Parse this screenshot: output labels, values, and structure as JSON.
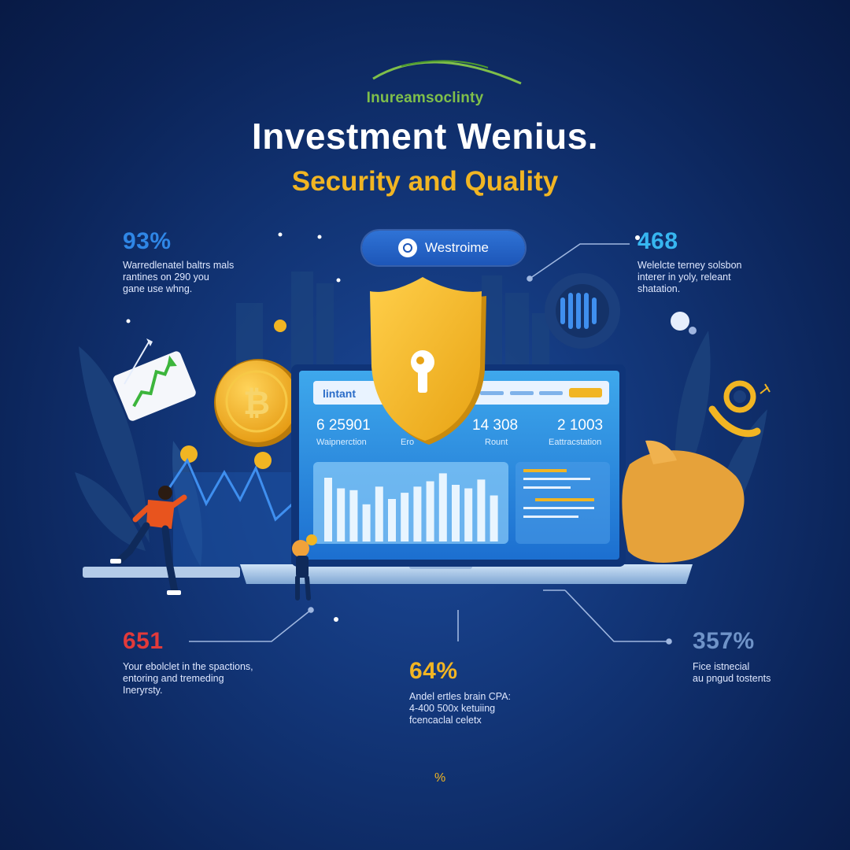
{
  "header": {
    "brand": "Inureamsoclinty",
    "title": "Investment Wenius.",
    "subtitle": "Security and Quality"
  },
  "pill": {
    "label": "Westroime",
    "icon": "location-pin-icon"
  },
  "stats": {
    "top_left": {
      "value": "93%",
      "text": [
        "Warredlenatel baltrs mals",
        "rantines on 290 you",
        "gane use whng."
      ]
    },
    "top_right": {
      "value": "468",
      "text": [
        "Welelcte terney solsbon",
        "interer in yoly, releant",
        "shatation."
      ]
    },
    "bottom_left": {
      "value": "651",
      "text": [
        "Your ebolclet in the spactions,",
        "entoring and tremeding",
        "Ineryrsty."
      ]
    },
    "bottom_center": {
      "value": "64%",
      "text": [
        "Andel ertles brain CPA:",
        "4-400 500x ketuiing",
        "fcencaclal celetx"
      ]
    },
    "bottom_right": {
      "value": "357%",
      "text": [
        "Fice istnecial",
        "au pngud tostents"
      ]
    }
  },
  "dashboard": {
    "header_label": "lintant",
    "metrics": [
      {
        "value": "6 25901",
        "label": "Waipnerction"
      },
      {
        "value": "14 308",
        "label": "Rount"
      },
      {
        "value": "2 1003",
        "label": "Eattracstation"
      }
    ],
    "bar_values": [
      72,
      60,
      58,
      42,
      62,
      48,
      55,
      62,
      68,
      77,
      64,
      60,
      70,
      52
    ],
    "extra_label": "Ero"
  },
  "footer": {
    "mark": "%"
  },
  "colors": {
    "background": "#123577",
    "accent_gold": "#f1b523",
    "accent_green": "#7fbf4a",
    "stat_blue": "#2f86e6",
    "stat_cyan": "#37b6f0",
    "stat_red": "#e23a3a",
    "stat_gold": "#f1b523",
    "stat_steel": "#6f93c8"
  },
  "icons": [
    "shield-lock-icon",
    "bitcoin-coin-icon",
    "trend-arrow-icon",
    "location-pin-icon",
    "speaker-icon",
    "piggy-bank-icon"
  ]
}
